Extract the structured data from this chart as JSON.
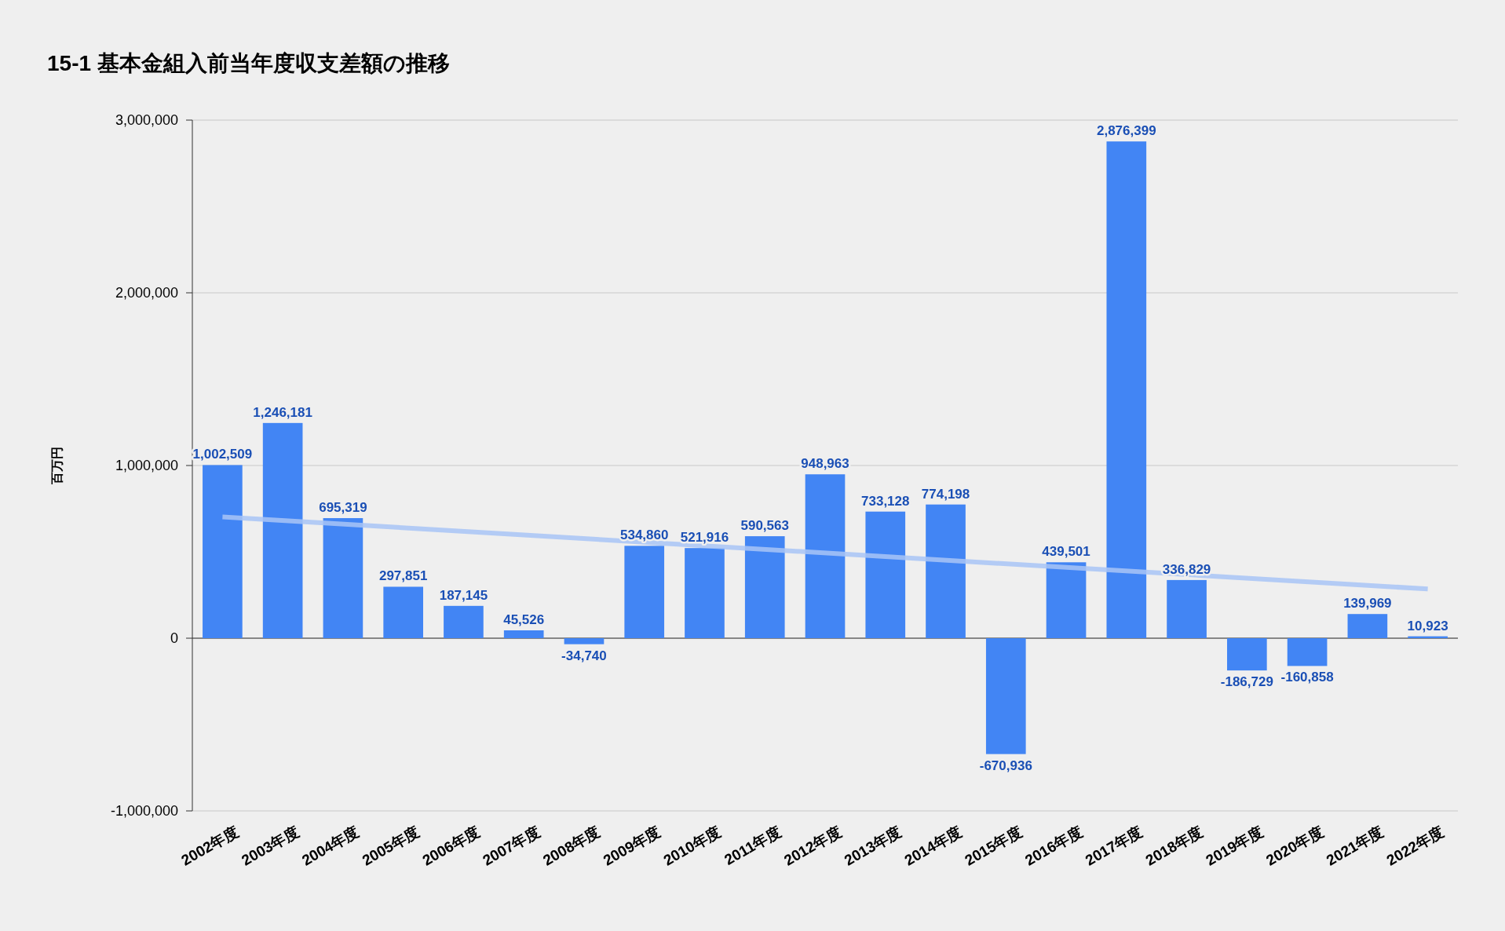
{
  "chart_data": {
    "type": "bar",
    "title": "15-1 基本金組入前当年度収支差額の推移",
    "ylabel": "百万円",
    "categories": [
      "2002年度",
      "2003年度",
      "2004年度",
      "2005年度",
      "2006年度",
      "2007年度",
      "2008年度",
      "2009年度",
      "2010年度",
      "2011年度",
      "2012年度",
      "2013年度",
      "2014年度",
      "2015年度",
      "2016年度",
      "2017年度",
      "2018年度",
      "2019年度",
      "2020年度",
      "2021年度",
      "2022年度"
    ],
    "ylim": [
      -1000000,
      3000000
    ],
    "yticks": [
      {
        "value": -1000000,
        "label": "-1,000,000"
      },
      0,
      {
        "value": 1000000,
        "label": "1,000,000"
      },
      {
        "value": 2000000,
        "label": "2,000,000"
      },
      {
        "value": 3000000,
        "label": "3,000,000"
      }
    ],
    "grid": "y",
    "series": [
      {
        "color": "#4285f4",
        "values": [
          1002509,
          1246181,
          695319,
          297851,
          187145,
          45526,
          -34740,
          534860,
          521916,
          590563,
          948963,
          733128,
          774198,
          -670936,
          439501,
          2876399,
          336829,
          -186729,
          -160858,
          139969,
          10923
        ],
        "value_labels": [
          "1,002,509",
          "1,246,181",
          "695,319",
          "297,851",
          "187,145",
          "45,526",
          "-34,740",
          "534,860",
          "521,916",
          "590,563",
          "948,963",
          "733,128",
          "774,198",
          "-670,936",
          "439,501",
          "2,876,399",
          "336,829",
          "-186,729",
          "-160,858",
          "139,969",
          "10,923"
        ]
      },
      {
        "type": "line",
        "color": "#a8c4f6",
        "x": [
          "2002年度",
          "2022年度"
        ],
        "values": [
          702000,
          285000
        ]
      }
    ]
  }
}
